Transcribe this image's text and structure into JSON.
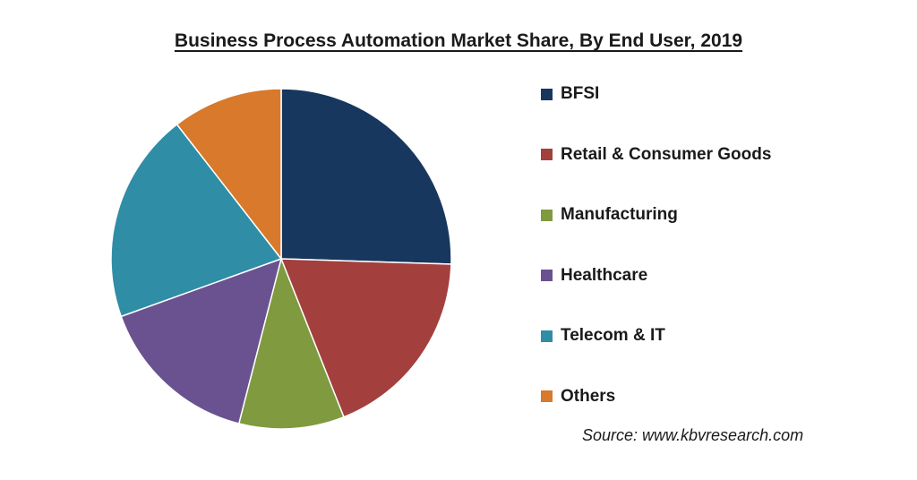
{
  "chart_data": {
    "type": "pie",
    "title": "Business Process Automation Market Share, By End User, 2019",
    "categories": [
      "BFSI",
      "Retail & Consumer Goods",
      "Manufacturing",
      "Healthcare",
      "Telecom & IT",
      "Others"
    ],
    "values": [
      25.5,
      18.5,
      10.0,
      15.5,
      20.0,
      10.5
    ],
    "colors": [
      "#17375E",
      "#A3403D",
      "#7F9A3F",
      "#6A5290",
      "#2F8DA6",
      "#D8792C"
    ],
    "legend_position": "right",
    "start_angle": "12 o'clock, clockwise"
  },
  "source": "Source: www.kbvresearch.com"
}
